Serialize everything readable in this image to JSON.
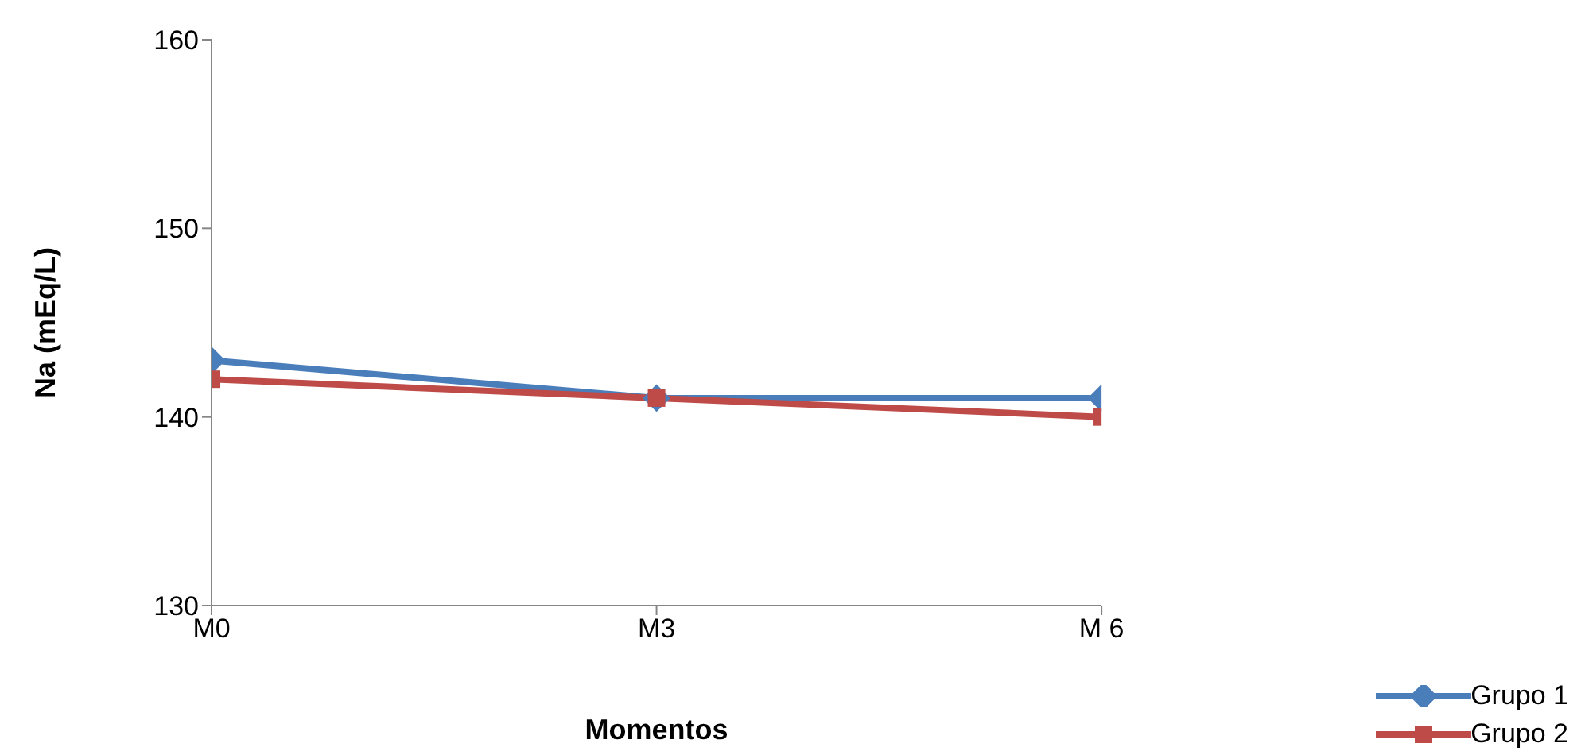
{
  "chart_data": {
    "type": "line",
    "xlabel": "Momentos",
    "ylabel": "Na (mEq/L)",
    "categories": [
      "M0",
      "M3",
      "M 6"
    ],
    "series": [
      {
        "name": "Grupo 1",
        "color": "#4a7ebb",
        "values": [
          143,
          141,
          141
        ],
        "marker": "diamond"
      },
      {
        "name": "Grupo 2",
        "color": "#be4b48",
        "values": [
          142,
          141,
          140
        ],
        "marker": "square"
      }
    ],
    "ylim": [
      130,
      160
    ],
    "yticks": [
      130,
      140,
      150,
      160
    ],
    "legend": "right"
  }
}
